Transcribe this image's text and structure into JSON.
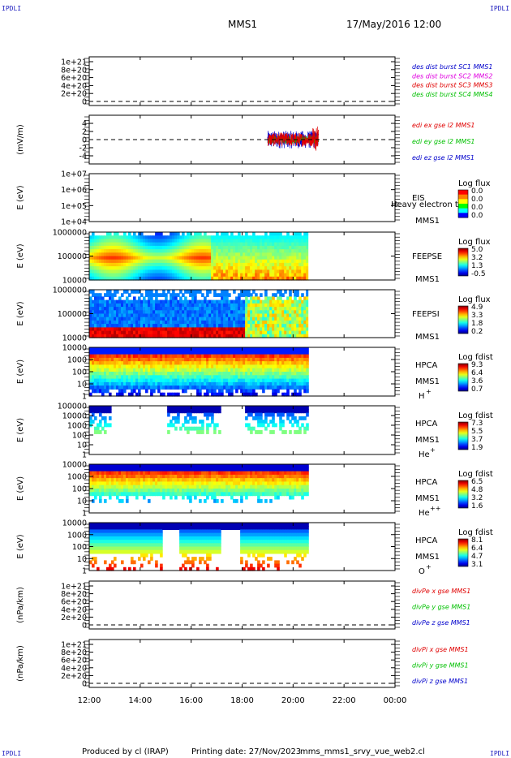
{
  "header": {
    "corner": "IPDLI",
    "spacecraft": "MMS1",
    "datetime": "17/May/2016 12:00"
  },
  "footer": {
    "produced_by": "Produced by cl (IRAP)",
    "printing_date": "Printing date: 27/Nov/2023",
    "script_name": "mms_mms1_srvy_vue_web2.cl"
  },
  "colors": {
    "red": "#e00000",
    "blue": "#0000cc",
    "green": "#00c000",
    "magenta": "#e000e0"
  },
  "time_axis": {
    "ticks": [
      "12:00",
      "14:00",
      "16:00",
      "18:00",
      "20:00",
      "22:00",
      "00:00"
    ],
    "range_hours": [
      12,
      24
    ],
    "data_end_hours": 20.6
  },
  "chart_data": [
    {
      "type": "line",
      "ylabel": "",
      "yticks": [
        "1e+21",
        "8e+20",
        "6e+20",
        "4e+20",
        "2e+20",
        "0"
      ],
      "zero_line": true,
      "legend": [
        {
          "label": "des dist burst SC1 MMS1",
          "color": "#0000cc"
        },
        {
          "label": "des dist burst SC2 MMS2",
          "color": "#e000e0"
        },
        {
          "label": "des dist burst SC3 MMS3",
          "color": "#e00000"
        },
        {
          "label": "des dist burst SC4 MMS4",
          "color": "#00c000"
        }
      ]
    },
    {
      "type": "line",
      "ylabel": "(mV/m)",
      "yticks": [
        "4",
        "2",
        "0",
        "-2",
        "-4"
      ],
      "ylim": [
        -5,
        5
      ],
      "zero_line": true,
      "data_span_hours": [
        19.0,
        21.0
      ],
      "legend": [
        {
          "label": "edi ex gse l2 MMS1",
          "color": "#e00000"
        },
        {
          "label": "edi ey gse l2 MMS1",
          "color": "#00c000"
        },
        {
          "label": "edi ez gse l2 MMS1",
          "color": "#0000cc"
        }
      ]
    },
    {
      "type": "heatmap",
      "ylabel": "E (eV)",
      "yticks": [
        "1e+07",
        "1e+06",
        "1e+05",
        "1e+04"
      ],
      "instrument": "EIS",
      "instrument_extra": "Heavy electron to",
      "spacecraft": "MMS1",
      "colorbar_title": "Log flux",
      "colorbar_values": [
        "0.0",
        "0.0",
        "0.0",
        "0.0"
      ]
    },
    {
      "type": "heatmap",
      "ylabel": "E (eV)",
      "yticks": [
        "1000000",
        "100000",
        "10000"
      ],
      "instrument": "FEEPSE",
      "spacecraft": "MMS1",
      "colorbar_title": "Log flux",
      "colorbar_values": [
        "5.0",
        "3.2",
        "1.3",
        "-0.5"
      ]
    },
    {
      "type": "heatmap",
      "ylabel": "E (eV)",
      "yticks": [
        "1000000",
        "100000",
        "10000"
      ],
      "instrument": "FEEPSI",
      "spacecraft": "MMS1",
      "colorbar_title": "Log flux",
      "colorbar_values": [
        "4.9",
        "3.3",
        "1.8",
        "0.2"
      ]
    },
    {
      "type": "heatmap",
      "ylabel": "E (eV)",
      "yticks": [
        "10000",
        "1000",
        "100",
        "10",
        "1"
      ],
      "instrument": "HPCA",
      "spacecraft": "MMS1",
      "species": "H",
      "species_charge": "+",
      "colorbar_title": "Log fdist",
      "colorbar_values": [
        "9.3",
        "6.4",
        "3.6",
        "0.7"
      ]
    },
    {
      "type": "heatmap",
      "ylabel": "E (eV)",
      "yticks": [
        "100000",
        "10000",
        "1000",
        "100",
        "10",
        "1"
      ],
      "instrument": "HPCA",
      "spacecraft": "MMS1",
      "species": "He",
      "species_charge": "+",
      "colorbar_title": "Log fdist",
      "colorbar_values": [
        "7.3",
        "5.5",
        "3.7",
        "1.9"
      ]
    },
    {
      "type": "heatmap",
      "ylabel": "E (eV)",
      "yticks": [
        "10000",
        "1000",
        "100",
        "10",
        "1"
      ],
      "instrument": "HPCA",
      "spacecraft": "MMS1",
      "species": "He",
      "species_charge": "++",
      "colorbar_title": "Log fdist",
      "colorbar_values": [
        "6.5",
        "4.8",
        "3.2",
        "1.6"
      ]
    },
    {
      "type": "heatmap",
      "ylabel": "E (eV)",
      "yticks": [
        "10000",
        "1000",
        "100",
        "10",
        "1"
      ],
      "instrument": "HPCA",
      "spacecraft": "MMS1",
      "species": "O",
      "species_charge": "+",
      "colorbar_title": "Log fdist",
      "colorbar_values": [
        "8.1",
        "6.4",
        "4.7",
        "3.1"
      ]
    },
    {
      "type": "line",
      "ylabel": "(nPa/km)",
      "yticks": [
        "1e+21",
        "8e+20",
        "6e+20",
        "4e+20",
        "2e+20",
        "0"
      ],
      "zero_line": true,
      "legend": [
        {
          "label": "divPe x gse MMS1",
          "color": "#e00000"
        },
        {
          "label": "divPe y gse MMS1",
          "color": "#00c000"
        },
        {
          "label": "divPe z gse MMS1",
          "color": "#0000cc"
        }
      ]
    },
    {
      "type": "line",
      "ylabel": "(nPa/km)",
      "yticks": [
        "1e+21",
        "8e+20",
        "6e+20",
        "4e+20",
        "2e+20",
        "0"
      ],
      "zero_line": true,
      "legend": [
        {
          "label": "divPi x gse MMS1",
          "color": "#e00000"
        },
        {
          "label": "divPi y gse MMS1",
          "color": "#00c000"
        },
        {
          "label": "divPi z gse MMS1",
          "color": "#0000cc"
        }
      ]
    }
  ]
}
